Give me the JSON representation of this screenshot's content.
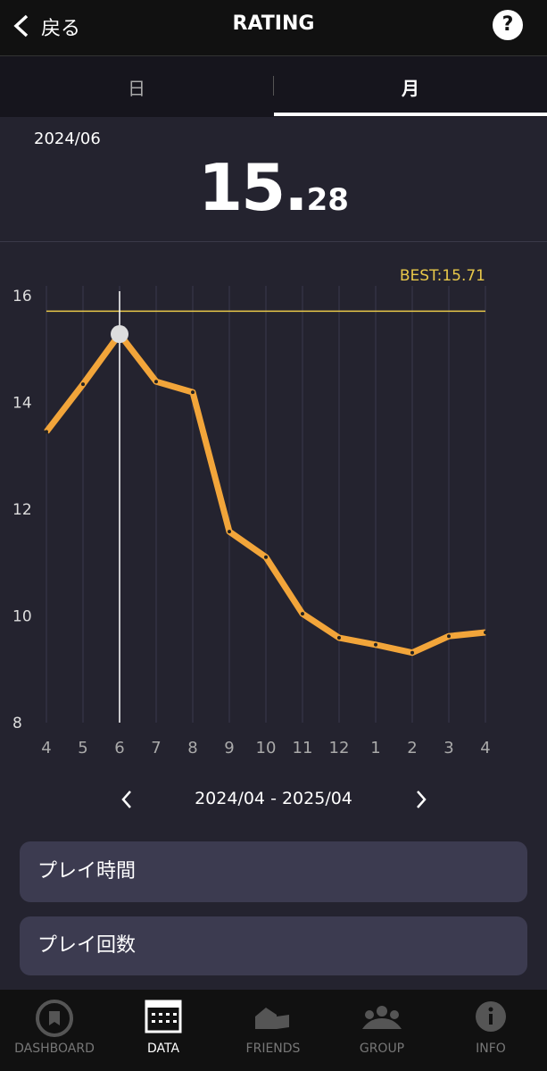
{
  "header": {
    "back": "戻る",
    "title": "RATING",
    "help": "?"
  },
  "tabs": [
    "日",
    "月"
  ],
  "summary": {
    "date": "2024/06",
    "value_int": "15.",
    "value_dec": "28"
  },
  "chart_data": {
    "type": "line",
    "categories": [
      "4",
      "5",
      "6",
      "7",
      "8",
      "9",
      "10",
      "11",
      "12",
      "1",
      "2",
      "3",
      "4"
    ],
    "series": [
      {
        "name": "RATING",
        "color": "#f2a53a",
        "values": [
          13.45,
          14.34,
          15.28,
          14.39,
          14.19,
          11.58,
          11.1,
          10.04,
          9.59,
          9.46,
          9.31,
          9.62,
          9.69
        ]
      }
    ],
    "ylim": [
      8,
      16
    ],
    "yticks": [
      8,
      10,
      12,
      14,
      16
    ],
    "grid": true,
    "best": 15.71,
    "best_label": "BEST:15.71",
    "best_color": "#e8c84a"
  },
  "range": "2024/04 - 2025/04",
  "buttons": [
    "プレイ時間",
    "プレイ回数"
  ],
  "nav": [
    "DASHBOARD",
    "DATA",
    "FRIENDS",
    "GROUP",
    "INFO"
  ]
}
